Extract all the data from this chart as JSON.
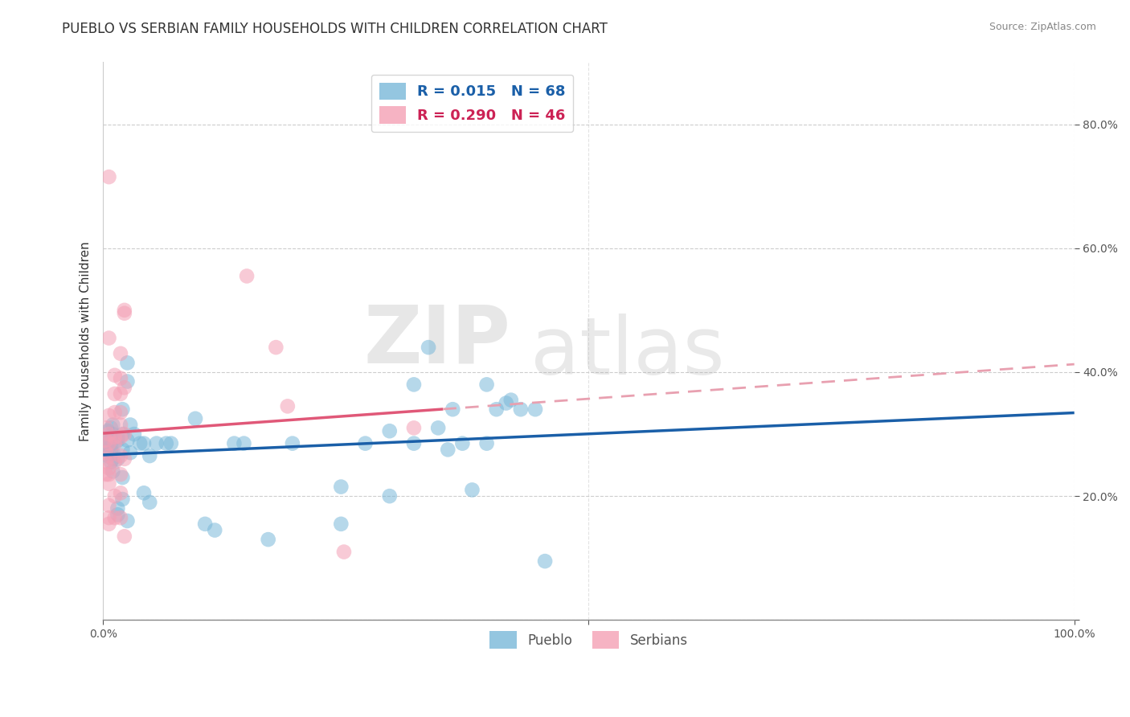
{
  "title": "PUEBLO VS SERBIAN FAMILY HOUSEHOLDS WITH CHILDREN CORRELATION CHART",
  "source": "Source: ZipAtlas.com",
  "ylabel": "Family Households with Children",
  "xlim": [
    0.0,
    1.0
  ],
  "ylim": [
    0.0,
    0.9
  ],
  "pueblo_scatter_color": "#7ab8d9",
  "serbian_scatter_color": "#f4a0b5",
  "pueblo_line_color": "#1a5fa8",
  "serbian_solid_color": "#e05878",
  "serbian_dashed_color": "#e8a0b0",
  "pueblo_R": 0.015,
  "pueblo_N": 68,
  "serbian_R": 0.29,
  "serbian_N": 46,
  "pueblo_points": [
    [
      0.005,
      0.295
    ],
    [
      0.005,
      0.305
    ],
    [
      0.005,
      0.275
    ],
    [
      0.005,
      0.285
    ],
    [
      0.005,
      0.265
    ],
    [
      0.008,
      0.29
    ],
    [
      0.008,
      0.31
    ],
    [
      0.008,
      0.27
    ],
    [
      0.008,
      0.255
    ],
    [
      0.008,
      0.28
    ],
    [
      0.01,
      0.3
    ],
    [
      0.01,
      0.26
    ],
    [
      0.01,
      0.24
    ],
    [
      0.01,
      0.27
    ],
    [
      0.01,
      0.315
    ],
    [
      0.015,
      0.29
    ],
    [
      0.015,
      0.17
    ],
    [
      0.015,
      0.18
    ],
    [
      0.015,
      0.295
    ],
    [
      0.015,
      0.26
    ],
    [
      0.02,
      0.34
    ],
    [
      0.02,
      0.3
    ],
    [
      0.02,
      0.195
    ],
    [
      0.02,
      0.23
    ],
    [
      0.02,
      0.275
    ],
    [
      0.025,
      0.385
    ],
    [
      0.025,
      0.415
    ],
    [
      0.025,
      0.16
    ],
    [
      0.025,
      0.29
    ],
    [
      0.028,
      0.315
    ],
    [
      0.028,
      0.27
    ],
    [
      0.032,
      0.3
    ],
    [
      0.038,
      0.285
    ],
    [
      0.042,
      0.285
    ],
    [
      0.042,
      0.205
    ],
    [
      0.048,
      0.19
    ],
    [
      0.048,
      0.265
    ],
    [
      0.055,
      0.285
    ],
    [
      0.065,
      0.285
    ],
    [
      0.07,
      0.285
    ],
    [
      0.095,
      0.325
    ],
    [
      0.105,
      0.155
    ],
    [
      0.115,
      0.145
    ],
    [
      0.135,
      0.285
    ],
    [
      0.145,
      0.285
    ],
    [
      0.17,
      0.13
    ],
    [
      0.195,
      0.285
    ],
    [
      0.245,
      0.215
    ],
    [
      0.245,
      0.155
    ],
    [
      0.27,
      0.285
    ],
    [
      0.295,
      0.305
    ],
    [
      0.295,
      0.2
    ],
    [
      0.32,
      0.285
    ],
    [
      0.32,
      0.38
    ],
    [
      0.335,
      0.44
    ],
    [
      0.345,
      0.31
    ],
    [
      0.355,
      0.275
    ],
    [
      0.36,
      0.34
    ],
    [
      0.37,
      0.285
    ],
    [
      0.38,
      0.21
    ],
    [
      0.395,
      0.285
    ],
    [
      0.395,
      0.38
    ],
    [
      0.405,
      0.34
    ],
    [
      0.415,
      0.35
    ],
    [
      0.42,
      0.355
    ],
    [
      0.43,
      0.34
    ],
    [
      0.445,
      0.34
    ],
    [
      0.455,
      0.095
    ]
  ],
  "serbian_points": [
    [
      0.003,
      0.235
    ],
    [
      0.003,
      0.31
    ],
    [
      0.003,
      0.29
    ],
    [
      0.003,
      0.27
    ],
    [
      0.003,
      0.255
    ],
    [
      0.006,
      0.715
    ],
    [
      0.006,
      0.455
    ],
    [
      0.006,
      0.33
    ],
    [
      0.006,
      0.3
    ],
    [
      0.006,
      0.285
    ],
    [
      0.006,
      0.265
    ],
    [
      0.006,
      0.245
    ],
    [
      0.006,
      0.235
    ],
    [
      0.006,
      0.22
    ],
    [
      0.006,
      0.185
    ],
    [
      0.006,
      0.165
    ],
    [
      0.006,
      0.155
    ],
    [
      0.012,
      0.395
    ],
    [
      0.012,
      0.365
    ],
    [
      0.012,
      0.335
    ],
    [
      0.012,
      0.295
    ],
    [
      0.012,
      0.285
    ],
    [
      0.012,
      0.255
    ],
    [
      0.012,
      0.2
    ],
    [
      0.012,
      0.165
    ],
    [
      0.018,
      0.43
    ],
    [
      0.018,
      0.39
    ],
    [
      0.018,
      0.365
    ],
    [
      0.018,
      0.335
    ],
    [
      0.018,
      0.315
    ],
    [
      0.018,
      0.295
    ],
    [
      0.018,
      0.265
    ],
    [
      0.018,
      0.235
    ],
    [
      0.018,
      0.205
    ],
    [
      0.018,
      0.165
    ],
    [
      0.022,
      0.5
    ],
    [
      0.022,
      0.375
    ],
    [
      0.022,
      0.495
    ],
    [
      0.022,
      0.3
    ],
    [
      0.022,
      0.26
    ],
    [
      0.022,
      0.135
    ],
    [
      0.148,
      0.555
    ],
    [
      0.178,
      0.44
    ],
    [
      0.19,
      0.345
    ],
    [
      0.248,
      0.11
    ],
    [
      0.32,
      0.31
    ]
  ],
  "background_color": "#ffffff",
  "grid_color": "#c8c8c8",
  "title_fontsize": 12,
  "label_fontsize": 11,
  "tick_fontsize": 10,
  "watermark_text": "ZIP",
  "watermark_text2": "atlas"
}
